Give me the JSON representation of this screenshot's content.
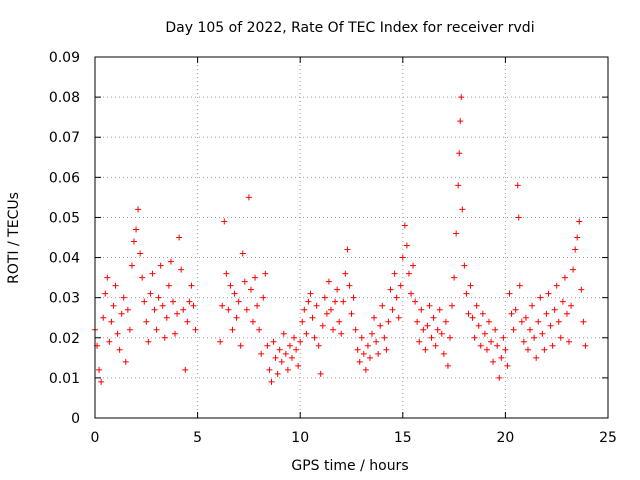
{
  "chart_data": {
    "type": "scatter",
    "title": "Day 105 of 2022, Rate Of TEC Index for receiver rvdi",
    "xlabel": "GPS time / hours",
    "ylabel": "ROTI / TECUs",
    "xlim": [
      0,
      25
    ],
    "ylim": [
      0,
      0.09
    ],
    "x_ticks": [
      0,
      5,
      10,
      15,
      20,
      25
    ],
    "x_tick_labels": [
      "0",
      "5",
      "10",
      "15",
      "20",
      "25"
    ],
    "y_ticks": [
      0,
      0.01,
      0.02,
      0.03,
      0.04,
      0.05,
      0.06,
      0.07,
      0.08,
      0.09
    ],
    "y_tick_labels": [
      "0",
      "0.01",
      "0.02",
      "0.03",
      "0.04",
      "0.05",
      "0.06",
      "0.07",
      "0.08",
      "0.09"
    ],
    "grid": true,
    "marker": "+",
    "color": "#ff0000",
    "series": [
      {
        "name": "ROTI",
        "points": [
          [
            0.0,
            0.022
          ],
          [
            0.1,
            0.018
          ],
          [
            0.2,
            0.012
          ],
          [
            0.3,
            0.009
          ],
          [
            0.4,
            0.025
          ],
          [
            0.5,
            0.031
          ],
          [
            0.6,
            0.035
          ],
          [
            0.7,
            0.019
          ],
          [
            0.8,
            0.024
          ],
          [
            0.9,
            0.028
          ],
          [
            1.0,
            0.033
          ],
          [
            1.1,
            0.021
          ],
          [
            1.2,
            0.017
          ],
          [
            1.3,
            0.026
          ],
          [
            1.4,
            0.03
          ],
          [
            1.5,
            0.014
          ],
          [
            1.6,
            0.027
          ],
          [
            1.7,
            0.022
          ],
          [
            1.8,
            0.038
          ],
          [
            1.9,
            0.044
          ],
          [
            2.0,
            0.047
          ],
          [
            2.1,
            0.052
          ],
          [
            2.2,
            0.041
          ],
          [
            2.3,
            0.035
          ],
          [
            2.4,
            0.029
          ],
          [
            2.5,
            0.024
          ],
          [
            2.6,
            0.019
          ],
          [
            2.7,
            0.031
          ],
          [
            2.8,
            0.036
          ],
          [
            2.9,
            0.027
          ],
          [
            3.0,
            0.022
          ],
          [
            3.1,
            0.03
          ],
          [
            3.2,
            0.038
          ],
          [
            3.3,
            0.028
          ],
          [
            3.4,
            0.02
          ],
          [
            3.5,
            0.025
          ],
          [
            3.6,
            0.033
          ],
          [
            3.7,
            0.039
          ],
          [
            3.8,
            0.029
          ],
          [
            3.9,
            0.021
          ],
          [
            4.0,
            0.026
          ],
          [
            4.1,
            0.045
          ],
          [
            4.2,
            0.037
          ],
          [
            4.3,
            0.027
          ],
          [
            4.4,
            0.012
          ],
          [
            4.5,
            0.024
          ],
          [
            4.6,
            0.029
          ],
          [
            4.7,
            0.033
          ],
          [
            4.8,
            0.028
          ],
          [
            4.9,
            0.022
          ],
          [
            6.1,
            0.019
          ],
          [
            6.2,
            0.028
          ],
          [
            6.3,
            0.049
          ],
          [
            6.4,
            0.036
          ],
          [
            6.5,
            0.027
          ],
          [
            6.6,
            0.033
          ],
          [
            6.7,
            0.022
          ],
          [
            6.8,
            0.031
          ],
          [
            6.9,
            0.025
          ],
          [
            7.0,
            0.029
          ],
          [
            7.1,
            0.018
          ],
          [
            7.2,
            0.041
          ],
          [
            7.3,
            0.034
          ],
          [
            7.4,
            0.027
          ],
          [
            7.5,
            0.055
          ],
          [
            7.6,
            0.032
          ],
          [
            7.7,
            0.024
          ],
          [
            7.8,
            0.035
          ],
          [
            7.9,
            0.028
          ],
          [
            8.0,
            0.022
          ],
          [
            8.1,
            0.016
          ],
          [
            8.2,
            0.03
          ],
          [
            8.3,
            0.036
          ],
          [
            8.4,
            0.018
          ],
          [
            8.5,
            0.012
          ],
          [
            8.6,
            0.009
          ],
          [
            8.7,
            0.019
          ],
          [
            8.8,
            0.015
          ],
          [
            8.9,
            0.011
          ],
          [
            9.0,
            0.017
          ],
          [
            9.1,
            0.014
          ],
          [
            9.2,
            0.021
          ],
          [
            9.3,
            0.016
          ],
          [
            9.4,
            0.012
          ],
          [
            9.5,
            0.018
          ],
          [
            9.6,
            0.015
          ],
          [
            9.7,
            0.02
          ],
          [
            9.8,
            0.017
          ],
          [
            9.9,
            0.013
          ],
          [
            10.0,
            0.019
          ],
          [
            10.1,
            0.024
          ],
          [
            10.2,
            0.027
          ],
          [
            10.3,
            0.021
          ],
          [
            10.4,
            0.029
          ],
          [
            10.5,
            0.031
          ],
          [
            10.6,
            0.025
          ],
          [
            10.7,
            0.02
          ],
          [
            10.8,
            0.028
          ],
          [
            10.9,
            0.018
          ],
          [
            11.0,
            0.011
          ],
          [
            11.1,
            0.023
          ],
          [
            11.2,
            0.03
          ],
          [
            11.3,
            0.026
          ],
          [
            11.4,
            0.034
          ],
          [
            11.5,
            0.027
          ],
          [
            11.6,
            0.022
          ],
          [
            11.7,
            0.029
          ],
          [
            11.8,
            0.032
          ],
          [
            11.9,
            0.024
          ],
          [
            12.0,
            0.021
          ],
          [
            12.1,
            0.029
          ],
          [
            12.2,
            0.036
          ],
          [
            12.3,
            0.042
          ],
          [
            12.4,
            0.033
          ],
          [
            12.5,
            0.026
          ],
          [
            12.6,
            0.03
          ],
          [
            12.7,
            0.022
          ],
          [
            12.8,
            0.017
          ],
          [
            12.9,
            0.014
          ],
          [
            13.0,
            0.02
          ],
          [
            13.1,
            0.016
          ],
          [
            13.2,
            0.012
          ],
          [
            13.3,
            0.018
          ],
          [
            13.4,
            0.015
          ],
          [
            13.5,
            0.021
          ],
          [
            13.6,
            0.025
          ],
          [
            13.7,
            0.019
          ],
          [
            13.8,
            0.016
          ],
          [
            13.9,
            0.023
          ],
          [
            14.0,
            0.028
          ],
          [
            14.1,
            0.02
          ],
          [
            14.2,
            0.017
          ],
          [
            14.3,
            0.024
          ],
          [
            14.4,
            0.032
          ],
          [
            14.5,
            0.027
          ],
          [
            14.6,
            0.036
          ],
          [
            14.7,
            0.03
          ],
          [
            14.8,
            0.025
          ],
          [
            14.9,
            0.033
          ],
          [
            15.0,
            0.04
          ],
          [
            15.1,
            0.048
          ],
          [
            15.2,
            0.043
          ],
          [
            15.3,
            0.036
          ],
          [
            15.4,
            0.031
          ],
          [
            15.5,
            0.038
          ],
          [
            15.6,
            0.029
          ],
          [
            15.7,
            0.024
          ],
          [
            15.8,
            0.019
          ],
          [
            15.9,
            0.027
          ],
          [
            16.0,
            0.022
          ],
          [
            16.1,
            0.017
          ],
          [
            16.2,
            0.023
          ],
          [
            16.3,
            0.028
          ],
          [
            16.4,
            0.02
          ],
          [
            16.5,
            0.025
          ],
          [
            16.6,
            0.018
          ],
          [
            16.7,
            0.022
          ],
          [
            16.8,
            0.027
          ],
          [
            16.9,
            0.021
          ],
          [
            17.0,
            0.016
          ],
          [
            17.1,
            0.024
          ],
          [
            17.2,
            0.013
          ],
          [
            17.3,
            0.02
          ],
          [
            17.4,
            0.028
          ],
          [
            17.5,
            0.035
          ],
          [
            17.6,
            0.046
          ],
          [
            17.7,
            0.058
          ],
          [
            17.75,
            0.066
          ],
          [
            17.8,
            0.074
          ],
          [
            17.85,
            0.08
          ],
          [
            17.9,
            0.052
          ],
          [
            18.0,
            0.038
          ],
          [
            18.1,
            0.031
          ],
          [
            18.2,
            0.026
          ],
          [
            18.3,
            0.033
          ],
          [
            18.4,
            0.025
          ],
          [
            18.5,
            0.02
          ],
          [
            18.6,
            0.028
          ],
          [
            18.7,
            0.023
          ],
          [
            18.8,
            0.018
          ],
          [
            18.9,
            0.026
          ],
          [
            19.0,
            0.021
          ],
          [
            19.1,
            0.017
          ],
          [
            19.2,
            0.024
          ],
          [
            19.3,
            0.019
          ],
          [
            19.4,
            0.014
          ],
          [
            19.5,
            0.022
          ],
          [
            19.6,
            0.018
          ],
          [
            19.7,
            0.01
          ],
          [
            19.8,
            0.015
          ],
          [
            19.9,
            0.02
          ],
          [
            20.0,
            0.017
          ],
          [
            20.1,
            0.013
          ],
          [
            20.2,
            0.031
          ],
          [
            20.3,
            0.026
          ],
          [
            20.4,
            0.022
          ],
          [
            20.5,
            0.027
          ],
          [
            20.6,
            0.058
          ],
          [
            20.65,
            0.05
          ],
          [
            20.7,
            0.033
          ],
          [
            20.8,
            0.024
          ],
          [
            20.9,
            0.019
          ],
          [
            21.0,
            0.025
          ],
          [
            21.1,
            0.017
          ],
          [
            21.2,
            0.022
          ],
          [
            21.3,
            0.028
          ],
          [
            21.4,
            0.02
          ],
          [
            21.5,
            0.015
          ],
          [
            21.6,
            0.024
          ],
          [
            21.7,
            0.03
          ],
          [
            21.8,
            0.021
          ],
          [
            21.9,
            0.017
          ],
          [
            22.0,
            0.026
          ],
          [
            22.1,
            0.031
          ],
          [
            22.2,
            0.023
          ],
          [
            22.3,
            0.018
          ],
          [
            22.4,
            0.027
          ],
          [
            22.5,
            0.033
          ],
          [
            22.6,
            0.024
          ],
          [
            22.7,
            0.02
          ],
          [
            22.8,
            0.029
          ],
          [
            22.9,
            0.035
          ],
          [
            23.0,
            0.026
          ],
          [
            23.1,
            0.019
          ],
          [
            23.2,
            0.028
          ],
          [
            23.3,
            0.037
          ],
          [
            23.4,
            0.042
          ],
          [
            23.5,
            0.045
          ],
          [
            23.6,
            0.049
          ],
          [
            23.7,
            0.032
          ],
          [
            23.8,
            0.024
          ],
          [
            23.9,
            0.018
          ]
        ]
      }
    ]
  }
}
